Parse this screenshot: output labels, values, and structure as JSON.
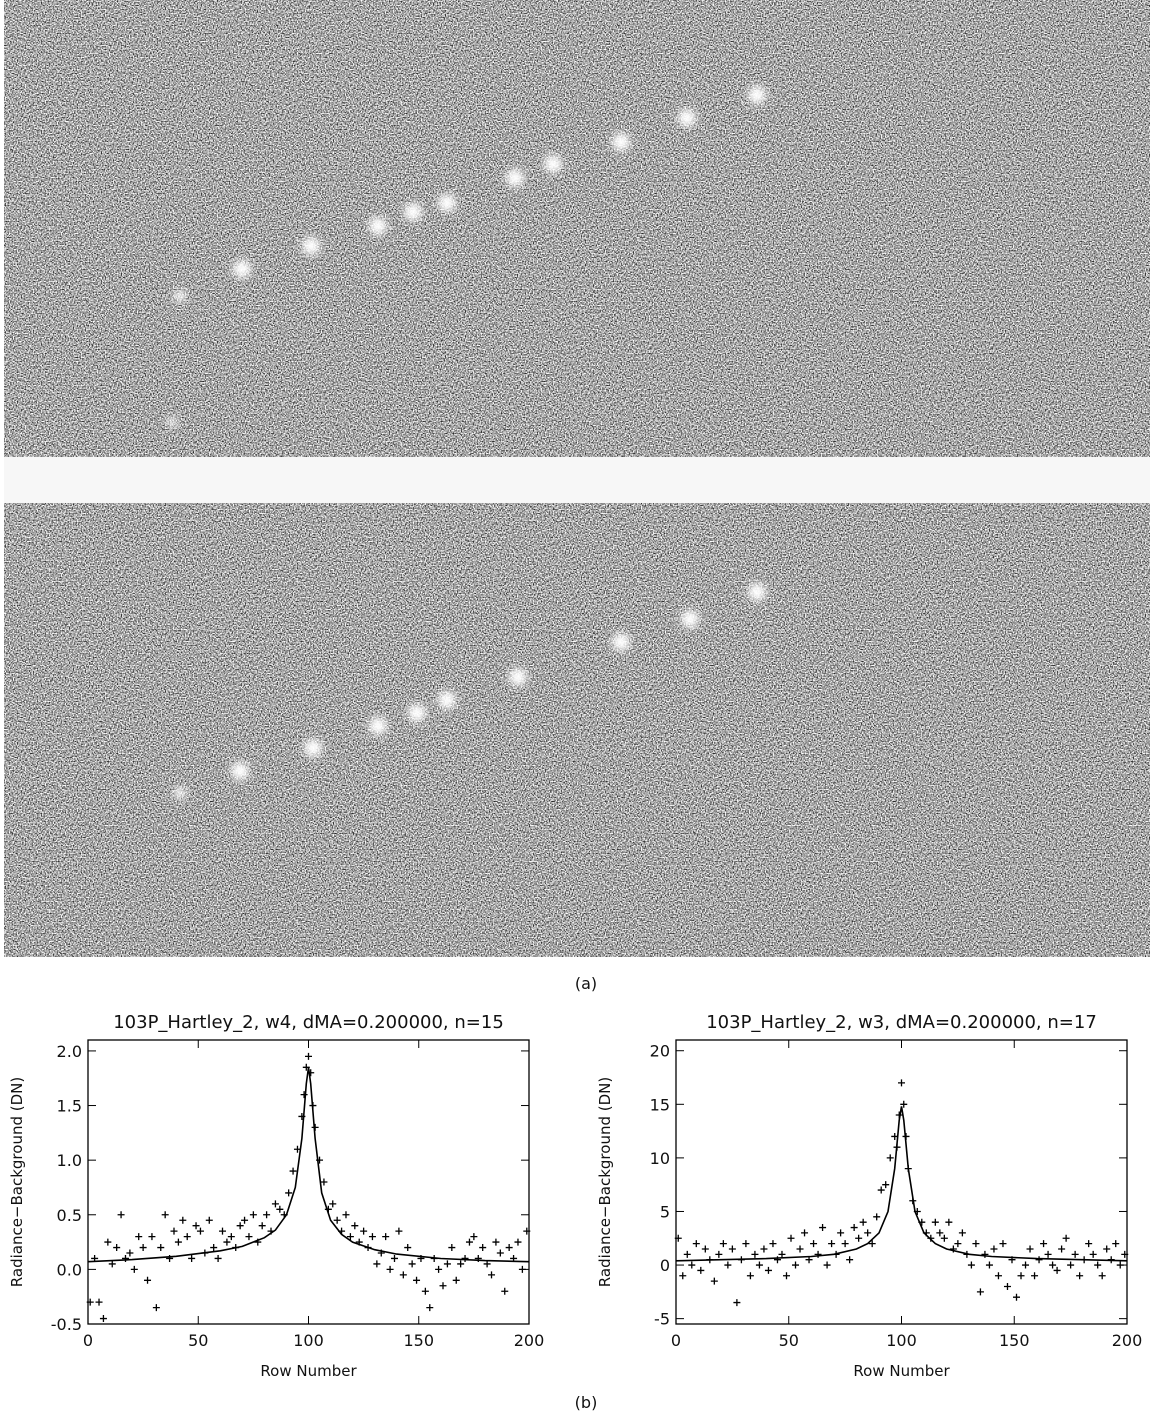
{
  "figure": {
    "captions": [
      "(a)",
      "(b)"
    ]
  },
  "chart_data": [
    {
      "type": "scatter",
      "title": "103P_Hartley_2, w4, dMA=0.200000, n=15",
      "x_label": "Row Number",
      "y_label": "Radiance−Background (DN)",
      "xlim": [
        0,
        200
      ],
      "xticks": [
        0,
        50,
        100,
        150,
        200
      ],
      "ylim": [
        -0.5,
        2.1
      ],
      "yticks": [
        -0.5,
        {
          "value": 0,
          "label": "0.0"
        },
        0.5,
        {
          "value": 1,
          "label": "1.0"
        },
        1.5,
        {
          "value": 2,
          "label": "2.0"
        }
      ],
      "series": [
        {
          "kind": "scatter",
          "marker": "+",
          "color": "#000",
          "x": [
            1,
            3,
            5,
            7,
            9,
            11,
            13,
            15,
            17,
            19,
            21,
            23,
            25,
            27,
            29,
            31,
            33,
            35,
            37,
            39,
            41,
            43,
            45,
            47,
            49,
            51,
            53,
            55,
            57,
            59,
            61,
            63,
            65,
            67,
            69,
            71,
            73,
            75,
            77,
            79,
            81,
            83,
            85,
            87,
            89,
            91,
            93,
            95,
            97,
            98,
            99,
            100,
            101,
            102,
            103,
            105,
            107,
            109,
            111,
            113,
            115,
            117,
            119,
            121,
            123,
            125,
            127,
            129,
            131,
            133,
            135,
            137,
            139,
            141,
            143,
            145,
            147,
            149,
            151,
            153,
            155,
            157,
            159,
            161,
            163,
            165,
            167,
            169,
            171,
            173,
            175,
            177,
            179,
            181,
            183,
            185,
            187,
            189,
            191,
            193,
            195,
            197,
            199
          ],
          "values": [
            -0.3,
            0.1,
            -0.3,
            -0.45,
            0.25,
            0.05,
            0.2,
            0.5,
            0.1,
            0.15,
            0,
            0.3,
            0.2,
            -0.1,
            0.3,
            -0.35,
            0.2,
            0.5,
            0.1,
            0.35,
            0.25,
            0.45,
            0.3,
            0.1,
            0.4,
            0.35,
            0.15,
            0.45,
            0.2,
            0.1,
            0.35,
            0.25,
            0.3,
            0.2,
            0.4,
            0.45,
            0.3,
            0.5,
            0.25,
            0.4,
            0.5,
            0.35,
            0.6,
            0.55,
            0.5,
            0.7,
            0.9,
            1.1,
            1.4,
            1.6,
            1.85,
            1.95,
            1.8,
            1.5,
            1.3,
            1,
            0.8,
            0.55,
            0.6,
            0.45,
            0.35,
            0.5,
            0.3,
            0.4,
            0.25,
            0.35,
            0.2,
            0.3,
            0.05,
            0.15,
            0.3,
            0,
            0.1,
            0.35,
            -0.05,
            0.2,
            0.05,
            -0.1,
            0.1,
            -0.2,
            -0.35,
            0.1,
            0,
            -0.15,
            0.05,
            0.2,
            -0.1,
            0.05,
            0.1,
            0.25,
            0.3,
            0.1,
            0.2,
            0.05,
            -0.05,
            0.25,
            0.15,
            -0.2,
            0.2,
            0.1,
            0.25,
            0,
            0.35
          ]
        },
        {
          "kind": "line",
          "color": "#000",
          "x": [
            0,
            20,
            40,
            60,
            70,
            80,
            85,
            90,
            94,
            97,
            99,
            100,
            101,
            103,
            106,
            110,
            115,
            120,
            130,
            140,
            160,
            180,
            200
          ],
          "values": [
            0.07,
            0.09,
            0.12,
            0.17,
            0.21,
            0.29,
            0.36,
            0.5,
            0.75,
            1.2,
            1.7,
            1.85,
            1.7,
            1.2,
            0.7,
            0.45,
            0.32,
            0.25,
            0.18,
            0.14,
            0.1,
            0.08,
            0.07
          ]
        }
      ]
    },
    {
      "type": "scatter",
      "title": "103P_Hartley_2, w3, dMA=0.200000, n=17",
      "x_label": "Row Number",
      "y_label": "Radiance−Background (DN)",
      "xlim": [
        0,
        200
      ],
      "xticks": [
        0,
        50,
        100,
        150,
        200
      ],
      "ylim": [
        -5.5,
        21
      ],
      "yticks": [
        -5,
        0,
        5,
        10,
        15,
        20
      ],
      "series": [
        {
          "kind": "scatter",
          "marker": "+",
          "color": "#000",
          "x": [
            1,
            3,
            5,
            7,
            9,
            11,
            13,
            15,
            17,
            19,
            21,
            23,
            25,
            27,
            29,
            31,
            33,
            35,
            37,
            39,
            41,
            43,
            45,
            47,
            49,
            51,
            53,
            55,
            57,
            59,
            61,
            63,
            65,
            67,
            69,
            71,
            73,
            75,
            77,
            79,
            81,
            83,
            85,
            87,
            89,
            91,
            93,
            95,
            97,
            98,
            99,
            100,
            101,
            102,
            103,
            105,
            107,
            109,
            111,
            113,
            115,
            117,
            119,
            121,
            123,
            125,
            127,
            129,
            131,
            133,
            135,
            137,
            139,
            141,
            143,
            145,
            147,
            149,
            151,
            153,
            155,
            157,
            159,
            161,
            163,
            165,
            167,
            169,
            171,
            173,
            175,
            177,
            179,
            181,
            183,
            185,
            187,
            189,
            191,
            193,
            195,
            197,
            199
          ],
          "values": [
            2.5,
            -1,
            1,
            0,
            2,
            -0.5,
            1.5,
            0.5,
            -1.5,
            1,
            2,
            0,
            1.5,
            -3.5,
            0.5,
            2,
            -1,
            1,
            0,
            1.5,
            -0.5,
            2,
            0.5,
            1,
            -1,
            2.5,
            0,
            1.5,
            3,
            0.5,
            2,
            1,
            3.5,
            0,
            2,
            1,
            3,
            2,
            0.5,
            3.5,
            2.5,
            4,
            3,
            2,
            4.5,
            7,
            7.5,
            10,
            12,
            11,
            14,
            17,
            15,
            12,
            9,
            6,
            5,
            4,
            3,
            2.5,
            4,
            3,
            2.5,
            4,
            1.5,
            2,
            3,
            1,
            0,
            2,
            -2.5,
            1,
            0,
            1.5,
            -1,
            2,
            -2,
            0.5,
            -3,
            -1,
            0,
            1.5,
            -1,
            0.5,
            2,
            1,
            0,
            -0.5,
            1.5,
            2.5,
            0,
            1,
            -1,
            0.5,
            2,
            1,
            0,
            -1,
            1.5,
            0.5,
            2,
            0,
            1
          ]
        },
        {
          "kind": "line",
          "color": "#000",
          "x": [
            0,
            20,
            40,
            60,
            70,
            80,
            85,
            90,
            94,
            97,
            99,
            100,
            101,
            103,
            106,
            110,
            115,
            120,
            130,
            140,
            160,
            180,
            200
          ],
          "values": [
            0.4,
            0.5,
            0.6,
            0.8,
            1,
            1.5,
            2,
            3,
            5,
            9,
            13.5,
            14.8,
            13.5,
            9,
            5,
            3,
            2,
            1.5,
            1,
            0.8,
            0.6,
            0.5,
            0.4
          ]
        }
      ]
    }
  ]
}
